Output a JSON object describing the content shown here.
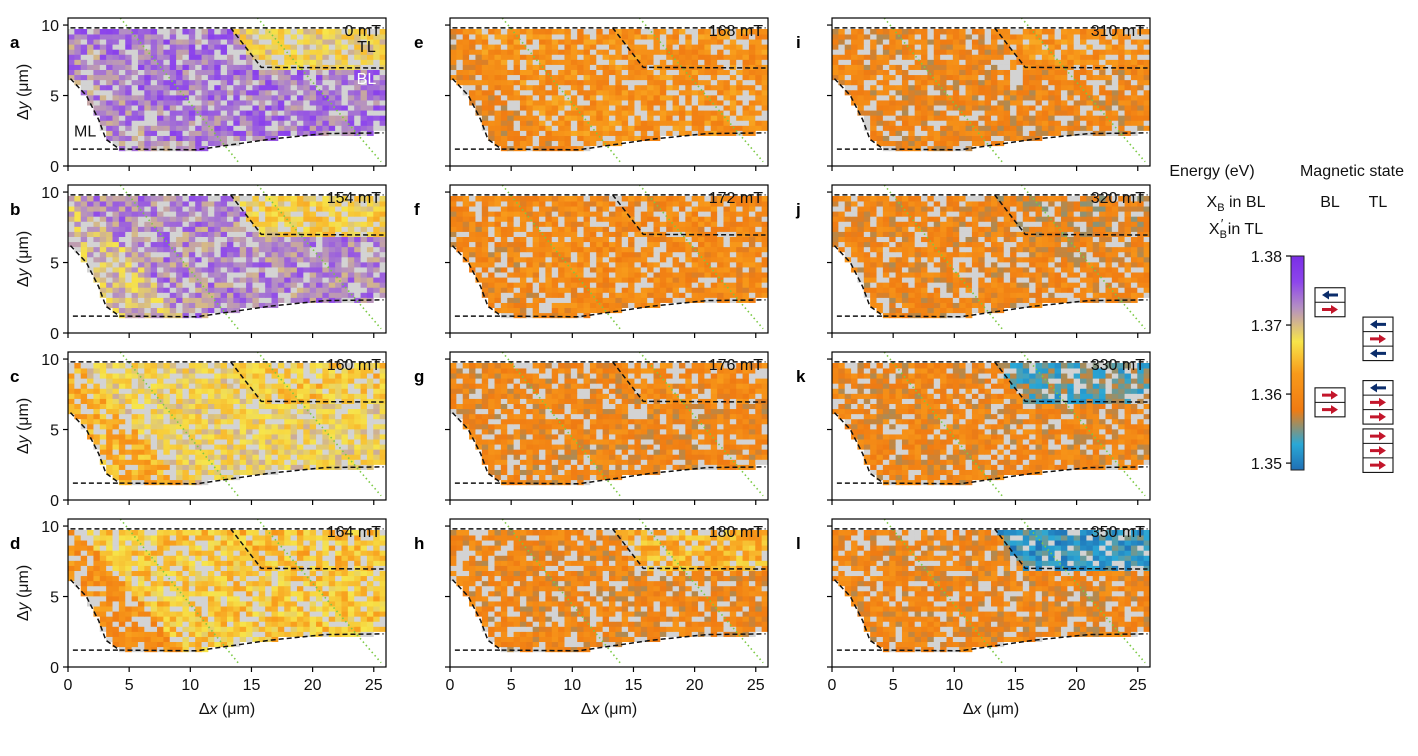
{
  "chart_data": {
    "type": "heatmap",
    "x_axis": {
      "label_symbol": "Δ",
      "label_var": "x",
      "label_unit": "(μm)",
      "range": [
        0,
        26
      ],
      "ticks": [
        0,
        5,
        10,
        15,
        20,
        25
      ],
      "tick_labels": [
        "0",
        "5",
        "10",
        "15",
        "20",
        "25"
      ]
    },
    "y_axis": {
      "label_symbol": "Δ",
      "label_var": "y",
      "label_unit": "(μm)",
      "range": [
        0,
        10.5
      ],
      "ticks": [
        0,
        5,
        10
      ],
      "tick_labels": [
        "0",
        "5",
        "10"
      ]
    },
    "region_labels": {
      "TL": {
        "text": "TL",
        "x": 24.4,
        "y": 8.1,
        "color": "#111111"
      },
      "BL": {
        "text": "BL",
        "x": 24.4,
        "y": 5.8,
        "color": "#ffffff"
      },
      "ML": {
        "text": "ML",
        "x": 1.4,
        "y": 2.1,
        "color": "#111111"
      }
    },
    "boundaries": {
      "dashed_black": [
        [
          [
            0.2,
            9.8
          ],
          [
            13.3,
            9.8
          ],
          [
            15.8,
            7.0
          ],
          [
            25.8,
            6.95
          ]
        ],
        [
          [
            13.3,
            9.8
          ],
          [
            25.8,
            9.8
          ]
        ],
        [
          [
            0.2,
            6.2
          ],
          [
            1.5,
            5.0
          ],
          [
            2.5,
            3.3
          ],
          [
            3.1,
            1.9
          ],
          [
            4.2,
            1.2
          ],
          [
            10.5,
            1.15
          ],
          [
            16.5,
            1.9
          ],
          [
            21.0,
            2.3
          ],
          [
            25.8,
            2.35
          ]
        ],
        [
          [
            0.4,
            1.2
          ],
          [
            4.2,
            1.2
          ]
        ]
      ],
      "dotted_green": [
        [
          [
            3.8,
            11.0
          ],
          [
            14.0,
            0.2
          ]
        ],
        [
          [
            15.0,
            11.0
          ],
          [
            25.6,
            0.3
          ]
        ]
      ]
    },
    "panels": [
      {
        "letter": "a",
        "field": "0 mT",
        "dominant": 1.372,
        "regions": {
          "ML": 1.373,
          "BL": 1.374,
          "TL": 1.368
        },
        "show_region_labels": true
      },
      {
        "letter": "b",
        "field": "154 mT",
        "dominant": 1.37,
        "regions": {
          "ML": 1.37,
          "BL": 1.373,
          "TL": 1.367
        }
      },
      {
        "letter": "c",
        "field": "160 mT",
        "dominant": 1.367,
        "regions": {
          "ML": 1.364,
          "BL": 1.368,
          "TL": 1.366
        }
      },
      {
        "letter": "d",
        "field": "164 mT",
        "dominant": 1.363,
        "regions": {
          "ML": 1.361,
          "BL": 1.366,
          "TL": 1.365
        }
      },
      {
        "letter": "e",
        "field": "168 mT",
        "dominant": 1.36,
        "regions": {
          "ML": 1.359,
          "BL": 1.361,
          "TL": 1.361
        }
      },
      {
        "letter": "f",
        "field": "172 mT",
        "dominant": 1.36,
        "regions": {
          "ML": 1.359,
          "BL": 1.36,
          "TL": 1.36
        }
      },
      {
        "letter": "g",
        "field": "176 mT",
        "dominant": 1.359,
        "regions": {
          "ML": 1.359,
          "BL": 1.359,
          "TL": 1.36
        }
      },
      {
        "letter": "h",
        "field": "180 mT",
        "dominant": 1.359,
        "regions": {
          "ML": 1.359,
          "BL": 1.359,
          "TL": 1.364
        }
      },
      {
        "letter": "i",
        "field": "310 mT",
        "dominant": 1.359,
        "regions": {
          "ML": 1.359,
          "BL": 1.359,
          "TL": 1.361
        }
      },
      {
        "letter": "j",
        "field": "320 mT",
        "dominant": 1.359,
        "regions": {
          "ML": 1.359,
          "BL": 1.359,
          "TL": 1.358
        }
      },
      {
        "letter": "k",
        "field": "330 mT",
        "dominant": 1.359,
        "regions": {
          "ML": 1.359,
          "BL": 1.359,
          "TL": 1.354
        }
      },
      {
        "letter": "l",
        "field": "350 mT",
        "dominant": 1.359,
        "regions": {
          "ML": 1.359,
          "BL": 1.359,
          "TL": 1.352
        }
      }
    ],
    "colorbar": {
      "title": "Energy (eV)",
      "line1_var": "X",
      "line1_sub": "B",
      "line1_rest": " in BL",
      "line2_var": "X",
      "line2_sub": "B",
      "line2_prime": "′",
      "line2_rest": " in TL",
      "range": [
        1.349,
        1.38
      ],
      "ticks": [
        1.35,
        1.36,
        1.37,
        1.38
      ],
      "tick_labels": [
        "1.35",
        "1.36",
        "1.37",
        "1.38"
      ],
      "stops": [
        {
          "v": 0.0,
          "c": "#1f6fb5"
        },
        {
          "v": 0.12,
          "c": "#2aa8d6"
        },
        {
          "v": 0.28,
          "c": "#f07b12"
        },
        {
          "v": 0.45,
          "c": "#f89a1a"
        },
        {
          "v": 0.6,
          "c": "#f7e54a"
        },
        {
          "v": 0.76,
          "c": "#b48fc3"
        },
        {
          "v": 0.88,
          "c": "#8d45ec"
        },
        {
          "v": 1.0,
          "c": "#7a2ee6"
        }
      ]
    },
    "magnetic_state": {
      "title": "Magnetic state",
      "columns": [
        "BL",
        "TL"
      ],
      "groups": [
        {
          "layer": "BL",
          "energy": 1.3733,
          "arrows": [
            "left",
            "right"
          ]
        },
        {
          "layer": "BL",
          "energy": 1.3588,
          "arrows": [
            "right",
            "right"
          ]
        },
        {
          "layer": "TL",
          "energy": 1.368,
          "arrows": [
            "left",
            "right",
            "left"
          ]
        },
        {
          "layer": "TL",
          "energy": 1.3588,
          "arrows": [
            "left",
            "right",
            "right"
          ]
        },
        {
          "layer": "TL",
          "energy": 1.3518,
          "arrows": [
            "right",
            "right",
            "right"
          ]
        }
      ],
      "colors": {
        "left": "#0b2d6b",
        "right": "#c3162b",
        "gray": "#d3d3d3"
      }
    }
  }
}
